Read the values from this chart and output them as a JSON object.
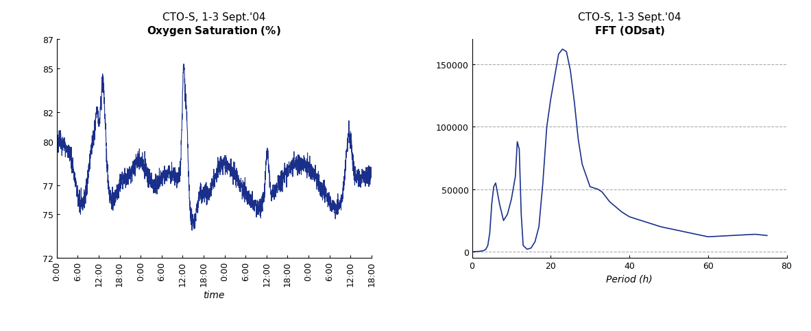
{
  "left_title_line1": "CTO-S, 1-3 Sept.'04",
  "left_title_line2": "Oxygen Saturation (%)",
  "left_xlabel": "time",
  "left_ylim": [
    72,
    87
  ],
  "left_yticks": [
    72,
    75,
    77,
    80,
    82,
    85,
    87
  ],
  "left_xlim": [
    0,
    90
  ],
  "left_xtick_positions": [
    0,
    6,
    12,
    18,
    24,
    30,
    36,
    42,
    48,
    54,
    60,
    66,
    72,
    78,
    84,
    90
  ],
  "left_xtick_labels": [
    "0:00",
    "6:00",
    "12:00",
    "18:00",
    "0:00",
    "6:00",
    "12:00",
    "18:00",
    "0:00",
    "6:00",
    "12:00",
    "18:00",
    "0:00",
    "6:00",
    "12:00",
    "18:00"
  ],
  "right_title_line1": "CTO-S, 1-3 Sept.'04",
  "right_title_line2": "FFT (ODsat)",
  "right_xlabel": "Period (h)",
  "right_xlim": [
    0,
    80
  ],
  "right_ylim": [
    -5000,
    170000
  ],
  "right_yticks": [
    0,
    50000,
    100000,
    150000
  ],
  "right_xticks": [
    0,
    20,
    40,
    60,
    80
  ],
  "fft_periods": [
    0,
    1,
    2,
    3,
    3.5,
    4,
    4.5,
    5,
    5.5,
    6,
    7,
    8,
    9,
    10,
    11,
    11.5,
    12,
    12.5,
    13,
    14,
    15,
    16,
    17,
    18,
    19,
    20,
    21,
    22,
    23,
    24,
    25,
    26,
    27,
    28,
    30,
    32,
    33,
    35,
    38,
    40,
    48,
    60,
    72,
    75
  ],
  "fft_values": [
    0,
    200,
    400,
    1000,
    2000,
    5000,
    15000,
    38000,
    52000,
    55000,
    38000,
    25000,
    30000,
    42000,
    60000,
    88000,
    82000,
    30000,
    5000,
    2000,
    3000,
    8000,
    20000,
    55000,
    100000,
    122000,
    140000,
    158000,
    162000,
    160000,
    145000,
    120000,
    90000,
    70000,
    52000,
    50000,
    48000,
    40000,
    32000,
    28000,
    20000,
    12000,
    14000,
    13000
  ],
  "line_color": "#1a2f8a",
  "background_color": "#ffffff",
  "grid_color": "#aaaaaa"
}
